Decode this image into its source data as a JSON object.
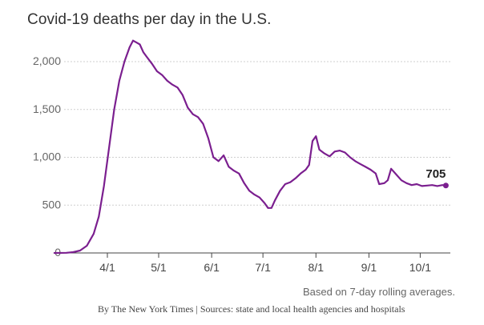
{
  "chart_data": {
    "type": "line",
    "title": "Covid-19 deaths per day in the U.S.",
    "y_ticks": [
      {
        "value": 0,
        "label": "0"
      },
      {
        "value": 500,
        "label": "500"
      },
      {
        "value": 1000,
        "label": "1,000"
      },
      {
        "value": 1500,
        "label": "1,500"
      },
      {
        "value": 2000,
        "label": "2,000"
      }
    ],
    "x_ticks": [
      {
        "date": "2020-04-01",
        "label": "4/1"
      },
      {
        "date": "2020-05-01",
        "label": "5/1"
      },
      {
        "date": "2020-06-01",
        "label": "6/1"
      },
      {
        "date": "2020-07-01",
        "label": "7/1"
      },
      {
        "date": "2020-08-01",
        "label": "8/1"
      },
      {
        "date": "2020-09-01",
        "label": "9/1"
      },
      {
        "date": "2020-10-01",
        "label": "10/1"
      }
    ],
    "ylim": [
      0,
      2200
    ],
    "xlim": [
      "2020-03-01",
      "2020-10-17"
    ],
    "grid": "horizontal dashed",
    "line_color": "#7b1f8f",
    "end_label": "705",
    "series": [
      {
        "points": [
          [
            "2020-03-01",
            0
          ],
          [
            "2020-03-08",
            2
          ],
          [
            "2020-03-12",
            8
          ],
          [
            "2020-03-16",
            25
          ],
          [
            "2020-03-20",
            75
          ],
          [
            "2020-03-24",
            200
          ],
          [
            "2020-03-27",
            380
          ],
          [
            "2020-03-30",
            700
          ],
          [
            "2020-04-02",
            1100
          ],
          [
            "2020-04-05",
            1500
          ],
          [
            "2020-04-08",
            1800
          ],
          [
            "2020-04-11",
            2000
          ],
          [
            "2020-04-14",
            2150
          ],
          [
            "2020-04-16",
            2220
          ],
          [
            "2020-04-18",
            2200
          ],
          [
            "2020-04-20",
            2180
          ],
          [
            "2020-04-22",
            2100
          ],
          [
            "2020-04-24",
            2050
          ],
          [
            "2020-04-27",
            1980
          ],
          [
            "2020-04-30",
            1900
          ],
          [
            "2020-05-03",
            1860
          ],
          [
            "2020-05-06",
            1800
          ],
          [
            "2020-05-09",
            1760
          ],
          [
            "2020-05-12",
            1730
          ],
          [
            "2020-05-15",
            1650
          ],
          [
            "2020-05-18",
            1520
          ],
          [
            "2020-05-21",
            1450
          ],
          [
            "2020-05-24",
            1420
          ],
          [
            "2020-05-27",
            1350
          ],
          [
            "2020-05-30",
            1200
          ],
          [
            "2020-06-02",
            1000
          ],
          [
            "2020-06-05",
            960
          ],
          [
            "2020-06-08",
            1020
          ],
          [
            "2020-06-11",
            900
          ],
          [
            "2020-06-14",
            860
          ],
          [
            "2020-06-17",
            830
          ],
          [
            "2020-06-20",
            730
          ],
          [
            "2020-06-23",
            650
          ],
          [
            "2020-06-26",
            610
          ],
          [
            "2020-06-29",
            580
          ],
          [
            "2020-07-02",
            520
          ],
          [
            "2020-07-04",
            470
          ],
          [
            "2020-07-06",
            470
          ],
          [
            "2020-07-08",
            550
          ],
          [
            "2020-07-11",
            650
          ],
          [
            "2020-07-14",
            720
          ],
          [
            "2020-07-17",
            740
          ],
          [
            "2020-07-20",
            780
          ],
          [
            "2020-07-23",
            830
          ],
          [
            "2020-07-26",
            870
          ],
          [
            "2020-07-28",
            920
          ],
          [
            "2020-07-30",
            1170
          ],
          [
            "2020-08-01",
            1220
          ],
          [
            "2020-08-03",
            1080
          ],
          [
            "2020-08-06",
            1040
          ],
          [
            "2020-08-09",
            1010
          ],
          [
            "2020-08-12",
            1060
          ],
          [
            "2020-08-15",
            1070
          ],
          [
            "2020-08-18",
            1050
          ],
          [
            "2020-08-21",
            1000
          ],
          [
            "2020-08-24",
            960
          ],
          [
            "2020-08-27",
            930
          ],
          [
            "2020-08-30",
            900
          ],
          [
            "2020-09-02",
            870
          ],
          [
            "2020-09-05",
            830
          ],
          [
            "2020-09-07",
            720
          ],
          [
            "2020-09-10",
            730
          ],
          [
            "2020-09-12",
            760
          ],
          [
            "2020-09-14",
            880
          ],
          [
            "2020-09-17",
            820
          ],
          [
            "2020-09-20",
            760
          ],
          [
            "2020-09-23",
            730
          ],
          [
            "2020-09-26",
            710
          ],
          [
            "2020-09-29",
            720
          ],
          [
            "2020-10-02",
            700
          ],
          [
            "2020-10-05",
            705
          ],
          [
            "2020-10-08",
            710
          ],
          [
            "2020-10-11",
            700
          ],
          [
            "2020-10-14",
            710
          ],
          [
            "2020-10-16",
            705
          ]
        ]
      }
    ]
  },
  "footer": {
    "note": "Based on 7-day rolling averages.",
    "credit": "By The New York Times | Sources: state and local health agencies and hospitals"
  }
}
